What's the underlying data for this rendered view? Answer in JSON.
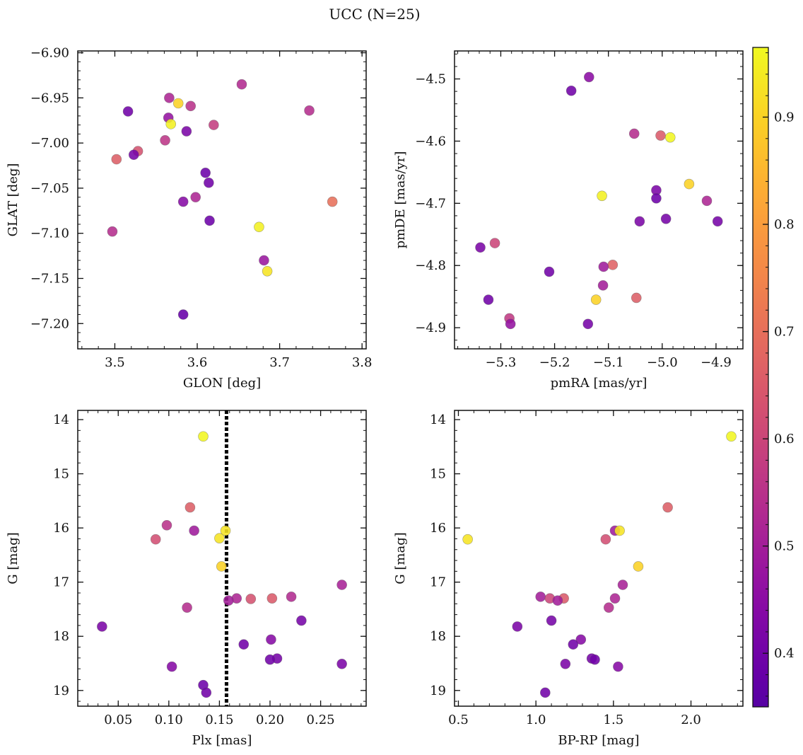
{
  "figure": {
    "title": "UCC (N=25)"
  },
  "colorbar": {
    "min": 0.35,
    "max": 0.965,
    "ticks": [
      0.4,
      0.5,
      0.6,
      0.7,
      0.8,
      0.9
    ],
    "tick_labels": [
      "0.4",
      "0.5",
      "0.6",
      "0.7",
      "0.8",
      "0.9"
    ],
    "colormap": "plasma"
  },
  "chart_data": [
    {
      "type": "scatter",
      "id": "glon-glat",
      "xlabel": "GLON [deg]",
      "ylabel": "GLAT [deg]",
      "xlim": [
        3.455,
        3.805
      ],
      "ylim": [
        -7.228,
        -6.898
      ],
      "y_inverted": false,
      "xticks": [
        3.5,
        3.6,
        3.7,
        3.8
      ],
      "xtick_labels": [
        "3.5",
        "3.6",
        "3.7",
        "3.8"
      ],
      "yticks": [
        -6.9,
        -6.95,
        -7.0,
        -7.05,
        -7.1,
        -7.15,
        -7.2
      ],
      "ytick_labels": [
        "−6.90",
        "−6.95",
        "−7.00",
        "−7.05",
        "−7.10",
        "−7.15",
        "−7.20"
      ],
      "points": [
        {
          "x": 3.516,
          "y": -6.965,
          "c": 0.4
        },
        {
          "x": 3.566,
          "y": -6.95,
          "c": 0.52
        },
        {
          "x": 3.577,
          "y": -6.956,
          "c": 0.9
        },
        {
          "x": 3.592,
          "y": -6.959,
          "c": 0.55
        },
        {
          "x": 3.654,
          "y": -6.935,
          "c": 0.53
        },
        {
          "x": 3.736,
          "y": -6.964,
          "c": 0.54
        },
        {
          "x": 3.565,
          "y": -6.972,
          "c": 0.47
        },
        {
          "x": 3.568,
          "y": -6.979,
          "c": 0.95
        },
        {
          "x": 3.587,
          "y": -6.987,
          "c": 0.42
        },
        {
          "x": 3.62,
          "y": -6.98,
          "c": 0.58
        },
        {
          "x": 3.561,
          "y": -6.997,
          "c": 0.56
        },
        {
          "x": 3.528,
          "y": -7.009,
          "c": 0.63
        },
        {
          "x": 3.523,
          "y": -7.013,
          "c": 0.41
        },
        {
          "x": 3.502,
          "y": -7.018,
          "c": 0.66
        },
        {
          "x": 3.61,
          "y": -7.033,
          "c": 0.39
        },
        {
          "x": 3.614,
          "y": -7.044,
          "c": 0.4
        },
        {
          "x": 3.598,
          "y": -7.06,
          "c": 0.52
        },
        {
          "x": 3.583,
          "y": -7.065,
          "c": 0.44
        },
        {
          "x": 3.764,
          "y": -7.065,
          "c": 0.7
        },
        {
          "x": 3.615,
          "y": -7.086,
          "c": 0.39
        },
        {
          "x": 3.497,
          "y": -7.098,
          "c": 0.54
        },
        {
          "x": 3.675,
          "y": -7.093,
          "c": 0.95
        },
        {
          "x": 3.681,
          "y": -7.13,
          "c": 0.48
        },
        {
          "x": 3.685,
          "y": -7.142,
          "c": 0.93
        },
        {
          "x": 3.583,
          "y": -7.19,
          "c": 0.38
        }
      ]
    },
    {
      "type": "scatter",
      "id": "pmra-pmde",
      "xlabel": "pmRA [mas/yr]",
      "ylabel": "pmDE [mas/yr]",
      "xlim": [
        -5.386,
        -4.85
      ],
      "ylim": [
        -4.934,
        -4.455
      ],
      "y_inverted": false,
      "xticks": [
        -5.3,
        -5.2,
        -5.1,
        -5.0,
        -4.9
      ],
      "xtick_labels": [
        "−5.3",
        "−5.2",
        "−5.1",
        "−5.0",
        "−4.9"
      ],
      "yticks": [
        -4.5,
        -4.6,
        -4.7,
        -4.8,
        -4.9
      ],
      "ytick_labels": [
        "−4.5",
        "−4.6",
        "−4.7",
        "−4.8",
        "−4.9"
      ],
      "points": [
        {
          "x": -5.136,
          "y": -4.497,
          "c": 0.45
        },
        {
          "x": -5.169,
          "y": -4.519,
          "c": 0.4
        },
        {
          "x": -5.052,
          "y": -4.588,
          "c": 0.54
        },
        {
          "x": -5.003,
          "y": -4.591,
          "c": 0.65
        },
        {
          "x": -4.985,
          "y": -4.594,
          "c": 0.96
        },
        {
          "x": -4.95,
          "y": -4.669,
          "c": 0.9
        },
        {
          "x": -5.011,
          "y": -4.679,
          "c": 0.42
        },
        {
          "x": -5.112,
          "y": -4.688,
          "c": 0.95
        },
        {
          "x": -5.011,
          "y": -4.692,
          "c": 0.39
        },
        {
          "x": -4.917,
          "y": -4.696,
          "c": 0.52
        },
        {
          "x": -4.993,
          "y": -4.725,
          "c": 0.41
        },
        {
          "x": -5.042,
          "y": -4.729,
          "c": 0.42
        },
        {
          "x": -4.897,
          "y": -4.729,
          "c": 0.41
        },
        {
          "x": -5.311,
          "y": -4.764,
          "c": 0.6
        },
        {
          "x": -5.338,
          "y": -4.771,
          "c": 0.42
        },
        {
          "x": -5.21,
          "y": -4.81,
          "c": 0.4
        },
        {
          "x": -5.092,
          "y": -4.799,
          "c": 0.67
        },
        {
          "x": -5.109,
          "y": -4.802,
          "c": 0.49
        },
        {
          "x": -5.11,
          "y": -4.832,
          "c": 0.5
        },
        {
          "x": -5.048,
          "y": -4.852,
          "c": 0.66
        },
        {
          "x": -5.123,
          "y": -4.855,
          "c": 0.9
        },
        {
          "x": -5.323,
          "y": -4.855,
          "c": 0.4
        },
        {
          "x": -5.284,
          "y": -4.885,
          "c": 0.57
        },
        {
          "x": -5.282,
          "y": -4.894,
          "c": 0.47
        },
        {
          "x": -5.138,
          "y": -4.894,
          "c": 0.41
        }
      ]
    },
    {
      "type": "scatter",
      "id": "plx-g",
      "xlabel": "Plx [mas]",
      "ylabel": "G [mag]",
      "xlim": [
        0.01,
        0.295
      ],
      "ylim": [
        13.83,
        19.29
      ],
      "y_inverted": true,
      "xticks": [
        0.05,
        0.1,
        0.15,
        0.2,
        0.25
      ],
      "xtick_labels": [
        "0.05",
        "0.10",
        "0.15",
        "0.20",
        "0.25"
      ],
      "yticks": [
        14,
        15,
        16,
        17,
        18,
        19
      ],
      "ytick_labels": [
        "14",
        "15",
        "16",
        "17",
        "18",
        "19"
      ],
      "vline": {
        "x": 0.157,
        "style": "dotted"
      },
      "points": [
        {
          "x": 0.134,
          "y": 14.31,
          "c": 0.96
        },
        {
          "x": 0.121,
          "y": 15.62,
          "c": 0.66
        },
        {
          "x": 0.098,
          "y": 15.95,
          "c": 0.55
        },
        {
          "x": 0.125,
          "y": 16.05,
          "c": 0.49
        },
        {
          "x": 0.156,
          "y": 16.05,
          "c": 0.93
        },
        {
          "x": 0.15,
          "y": 16.19,
          "c": 0.93
        },
        {
          "x": 0.087,
          "y": 16.21,
          "c": 0.62
        },
        {
          "x": 0.152,
          "y": 16.71,
          "c": 0.9
        },
        {
          "x": 0.271,
          "y": 17.05,
          "c": 0.51
        },
        {
          "x": 0.221,
          "y": 17.27,
          "c": 0.53
        },
        {
          "x": 0.167,
          "y": 17.3,
          "c": 0.52
        },
        {
          "x": 0.181,
          "y": 17.31,
          "c": 0.63
        },
        {
          "x": 0.202,
          "y": 17.3,
          "c": 0.65
        },
        {
          "x": 0.159,
          "y": 17.34,
          "c": 0.5
        },
        {
          "x": 0.118,
          "y": 17.47,
          "c": 0.54
        },
        {
          "x": 0.231,
          "y": 17.71,
          "c": 0.41
        },
        {
          "x": 0.034,
          "y": 17.82,
          "c": 0.42
        },
        {
          "x": 0.201,
          "y": 18.06,
          "c": 0.44
        },
        {
          "x": 0.174,
          "y": 18.15,
          "c": 0.4
        },
        {
          "x": 0.207,
          "y": 18.41,
          "c": 0.41
        },
        {
          "x": 0.2,
          "y": 18.43,
          "c": 0.4
        },
        {
          "x": 0.271,
          "y": 18.51,
          "c": 0.42
        },
        {
          "x": 0.103,
          "y": 18.56,
          "c": 0.44
        },
        {
          "x": 0.134,
          "y": 18.9,
          "c": 0.39
        },
        {
          "x": 0.137,
          "y": 19.04,
          "c": 0.4
        }
      ]
    },
    {
      "type": "scatter",
      "id": "bprp-g",
      "xlabel": "BP-RP [mag]",
      "ylabel": "G [mag]",
      "xlim": [
        0.475,
        2.335
      ],
      "ylim": [
        13.83,
        19.29
      ],
      "y_inverted": true,
      "xticks": [
        0.5,
        1.0,
        1.5,
        2.0
      ],
      "xtick_labels": [
        "0.5",
        "1.0",
        "1.5",
        "2.0"
      ],
      "yticks": [
        14,
        15,
        16,
        17,
        18,
        19
      ],
      "ytick_labels": [
        "14",
        "15",
        "16",
        "17",
        "18",
        "19"
      ],
      "points": [
        {
          "x": 2.26,
          "y": 14.31,
          "c": 0.96
        },
        {
          "x": 1.85,
          "y": 15.62,
          "c": 0.66
        },
        {
          "x": 1.51,
          "y": 16.05,
          "c": 0.49
        },
        {
          "x": 1.54,
          "y": 16.05,
          "c": 0.93
        },
        {
          "x": 0.56,
          "y": 16.21,
          "c": 0.93
        },
        {
          "x": 1.45,
          "y": 16.21,
          "c": 0.62
        },
        {
          "x": 1.66,
          "y": 16.71,
          "c": 0.9
        },
        {
          "x": 1.56,
          "y": 17.05,
          "c": 0.51
        },
        {
          "x": 1.03,
          "y": 17.27,
          "c": 0.5
        },
        {
          "x": 1.09,
          "y": 17.3,
          "c": 0.6
        },
        {
          "x": 1.18,
          "y": 17.3,
          "c": 0.65
        },
        {
          "x": 1.51,
          "y": 17.3,
          "c": 0.52
        },
        {
          "x": 1.14,
          "y": 17.34,
          "c": 0.5
        },
        {
          "x": 1.47,
          "y": 17.47,
          "c": 0.54
        },
        {
          "x": 1.1,
          "y": 17.71,
          "c": 0.41
        },
        {
          "x": 0.88,
          "y": 17.82,
          "c": 0.42
        },
        {
          "x": 1.29,
          "y": 18.06,
          "c": 0.44
        },
        {
          "x": 1.24,
          "y": 18.15,
          "c": 0.4
        },
        {
          "x": 1.36,
          "y": 18.41,
          "c": 0.41
        },
        {
          "x": 1.38,
          "y": 18.43,
          "c": 0.4
        },
        {
          "x": 1.19,
          "y": 18.51,
          "c": 0.42
        },
        {
          "x": 1.53,
          "y": 18.56,
          "c": 0.44
        },
        {
          "x": 1.06,
          "y": 19.04,
          "c": 0.4
        }
      ]
    }
  ]
}
